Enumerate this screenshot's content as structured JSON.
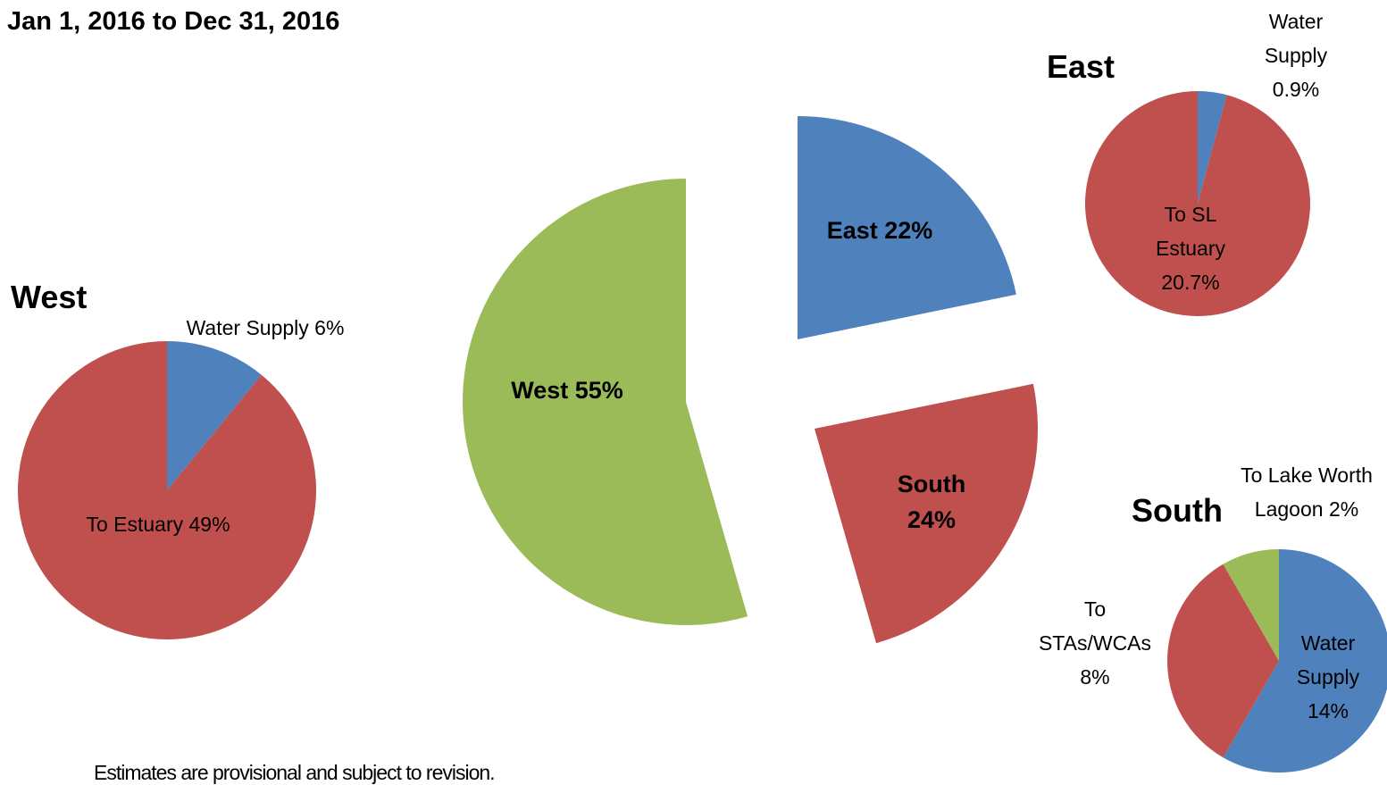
{
  "title": "Jan 1, 2016 to Dec 31, 2016",
  "note": "Estimates are provisional and subject to revision.",
  "chart_data": [
    {
      "type": "pie",
      "categories": [
        "East",
        "South",
        "West"
      ],
      "values": [
        22,
        24,
        55
      ],
      "value_labels": [
        "22%",
        "24%",
        "55%"
      ],
      "colors": [
        "#4f81bd",
        "#c0504d",
        "#9bbb59"
      ]
    },
    {
      "type": "pie",
      "title": "West",
      "categories": [
        "Water Supply",
        "To Estuary"
      ],
      "values": [
        6,
        49
      ],
      "value_labels": [
        "6%",
        "49%"
      ],
      "colors": [
        "#4f81bd",
        "#c0504d"
      ]
    },
    {
      "type": "pie",
      "title": "East",
      "categories": [
        "Water Supply",
        "To SL Estuary"
      ],
      "values": [
        0.9,
        20.7
      ],
      "value_labels": [
        "0.9%",
        "20.7%"
      ],
      "colors": [
        "#4f81bd",
        "#c0504d"
      ]
    },
    {
      "type": "pie",
      "title": "South",
      "categories": [
        "Water Supply",
        "To STAs/WCAs",
        "To Lake Worth Lagoon"
      ],
      "values": [
        14,
        8,
        2
      ],
      "value_labels": [
        "14%",
        "8%",
        "2%"
      ],
      "colors": [
        "#4f81bd",
        "#c0504d",
        "#9bbb59"
      ]
    }
  ]
}
